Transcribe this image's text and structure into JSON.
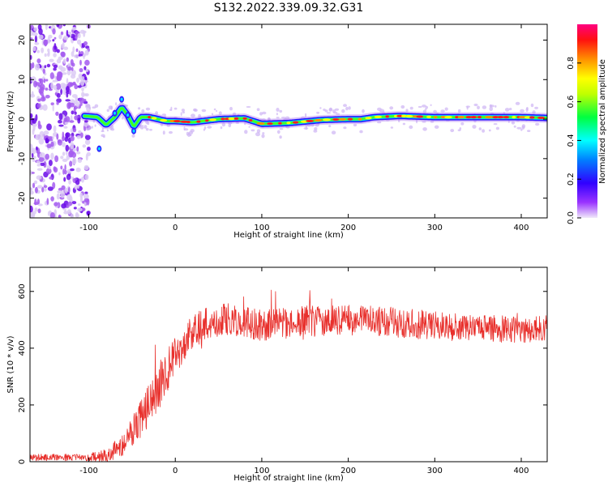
{
  "title": "S132.2022.339.09.32.G31",
  "chart_data": [
    {
      "type": "heatmap",
      "xlabel": "Height of straight line (km)",
      "ylabel": "Frequency (Hz)",
      "xlim": [
        -168,
        430
      ],
      "ylim": [
        -25,
        24
      ],
      "xticks": [
        -100,
        0,
        100,
        200,
        300,
        400
      ],
      "yticks": [
        -20,
        -10,
        0,
        10,
        20
      ],
      "colorbar": {
        "label": "Normalized spectral amplitude",
        "range": [
          0,
          1
        ],
        "ticks": [
          "0.0",
          "0.2",
          "0.4",
          "0.6",
          "0.8"
        ],
        "colors": [
          "#f0e8fa",
          "#8000ff",
          "#0000ff",
          "#00ffff",
          "#00ff00",
          "#ffff00",
          "#ff8000",
          "#ff0000",
          "#ff0080"
        ]
      },
      "ridge": {
        "x": [
          -105,
          -90,
          -80,
          -70,
          -62,
          -55,
          -48,
          -40,
          -30,
          -20,
          -10,
          0,
          20,
          50,
          80,
          100,
          130,
          150,
          170,
          200,
          215,
          230,
          260,
          300,
          350,
          400,
          430
        ],
        "y": [
          0.8,
          0.5,
          -1.5,
          0.5,
          3.0,
          1.0,
          -2.0,
          0.5,
          0.5,
          0.0,
          -0.5,
          -0.5,
          -0.8,
          0.0,
          0.2,
          -1.2,
          -1.0,
          -0.6,
          -0.2,
          0.0,
          0.0,
          0.5,
          0.8,
          0.5,
          0.5,
          0.5,
          0.3
        ]
      },
      "noise_region": {
        "x": [
          -168,
          -100
        ],
        "y": [
          -25,
          24
        ]
      }
    },
    {
      "type": "line",
      "xlabel": "Height of straight line (km)",
      "ylabel": "SNR (10 * v/v)",
      "xlim": [
        -168,
        430
      ],
      "ylim": [
        0,
        685
      ],
      "xticks": [
        -100,
        0,
        100,
        200,
        300,
        400
      ],
      "yticks": [
        0,
        200,
        400,
        600
      ],
      "color": "#e8302c",
      "trend": {
        "x": [
          -168,
          -100,
          -80,
          -60,
          -40,
          -20,
          0,
          20,
          40,
          60,
          100,
          150,
          200,
          250,
          300,
          350,
          400,
          430
        ],
        "y": [
          15,
          15,
          20,
          60,
          150,
          260,
          380,
          460,
          490,
          505,
          480,
          495,
          500,
          490,
          480,
          470,
          465,
          470
        ]
      },
      "noise_amplitude": {
        "x": [
          -168,
          -100,
          -60,
          -20,
          0,
          20,
          60,
          200,
          430
        ],
        "y": [
          12,
          12,
          40,
          90,
          70,
          60,
          55,
          55,
          45
        ]
      }
    }
  ]
}
